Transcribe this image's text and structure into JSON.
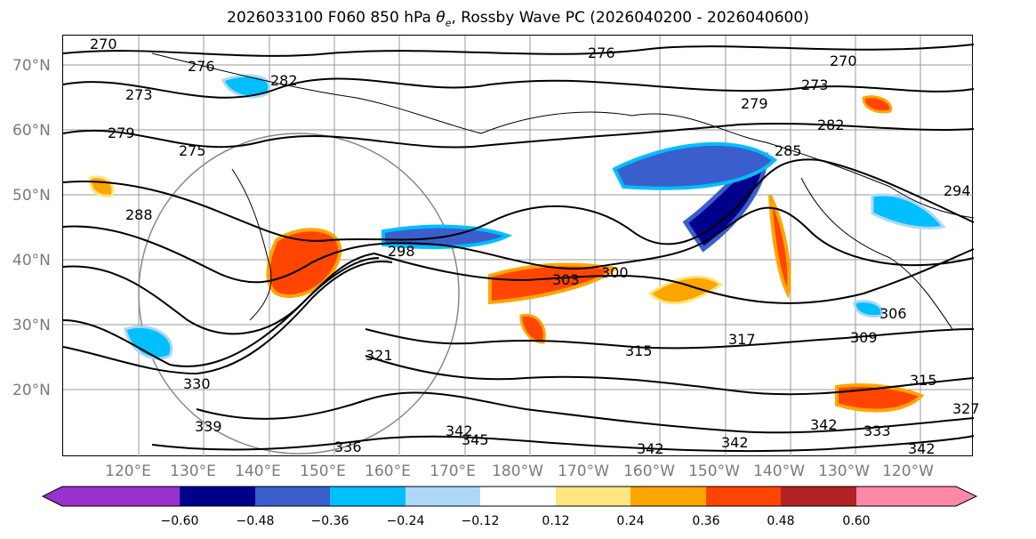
{
  "title": "2026033100 F060 850 hPa θ_e, Rossby Wave PC (2026040200 - 2026040600)",
  "lat_labels": [
    "70°N",
    "60°N",
    "50°N",
    "40°N",
    "30°N",
    "20°N"
  ],
  "lon_labels": [
    "120°E",
    "130°E",
    "140°E",
    "150°E",
    "160°E",
    "170°E",
    "180°W",
    "170°W",
    "160°W",
    "150°W",
    "140°W",
    "130°W",
    "120°W"
  ],
  "contour_labels": [
    "270",
    "276",
    "273",
    "282",
    "279",
    "275",
    "288",
    "276",
    "270",
    "273",
    "279",
    "282",
    "285",
    "294",
    "298",
    "303",
    "300",
    "306",
    "317",
    "309",
    "315",
    "321",
    "330",
    "339",
    "342",
    "345",
    "336",
    "342",
    "342",
    "342",
    "315",
    "333",
    "327",
    "342"
  ],
  "colorbar": {
    "colors": [
      "#9932cc",
      "#00008b",
      "#3a5fcd",
      "#00bfff",
      "#add8f7",
      "#ffffff",
      "#ffe680",
      "#ffa500",
      "#ff4500",
      "#b22222",
      "#ff88aa"
    ],
    "tick_labels": [
      "−0.60",
      "−0.48",
      "−0.36",
      "−0.24",
      "−0.12",
      "0.12",
      "0.24",
      "0.36",
      "0.48",
      "0.60"
    ]
  }
}
